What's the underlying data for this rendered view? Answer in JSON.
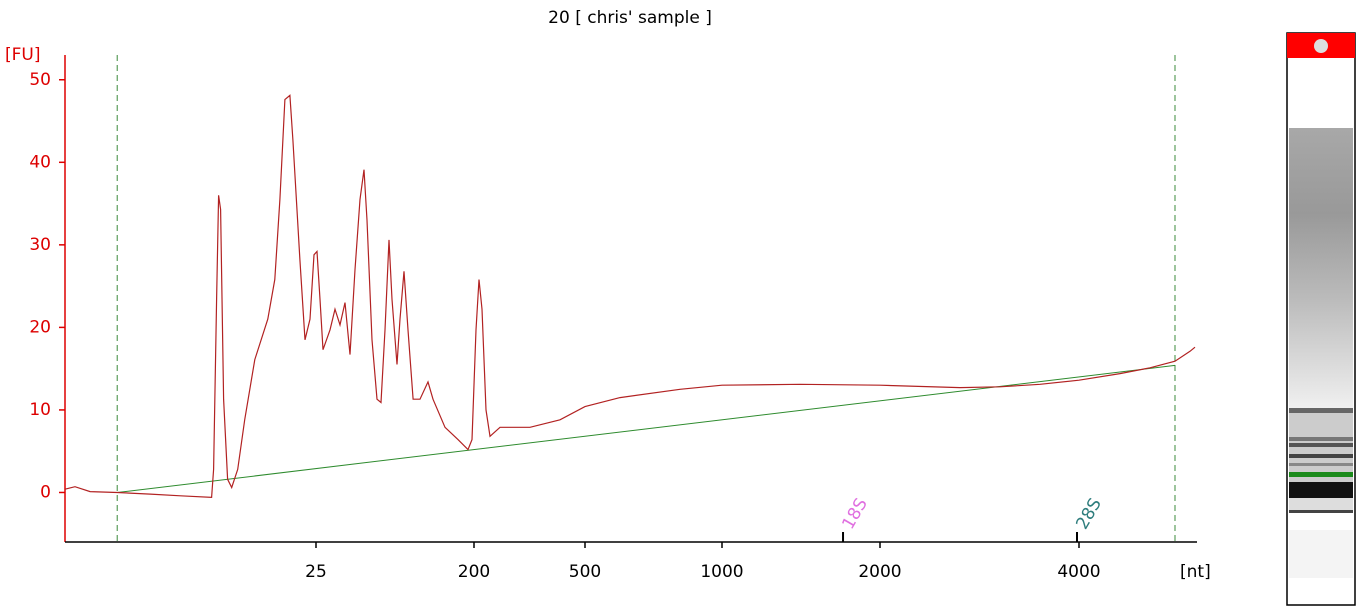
{
  "chart_data": {
    "type": "line",
    "title": "20  [ chris' sample ]",
    "y_label": "[FU]",
    "x_label": "[nt]",
    "series": [
      {
        "color": "#b22222",
        "x": [
          0,
          1.0,
          2.5,
          5.2,
          8.5,
          11.5,
          14.6,
          14.8,
          15.1,
          15.3,
          15.5,
          15.8,
          16.2,
          16.6,
          17.2,
          17.9,
          18.9,
          20.2,
          20.9,
          21.4,
          21.9,
          22.4,
          22.7,
          23.4,
          23.9,
          24.4,
          24.8,
          26.1,
          29.4,
          32.8,
          40.5,
          46,
          51.6,
          57.1,
          62.7,
          68.2,
          73.7,
          78.2,
          81.5,
          87,
          92.6,
          97,
          101.4,
          105.9,
          109.2,
          114.7,
          118,
          122.5,
          126.9,
          132.5,
          140.2,
          149.1,
          154.6,
          167.9,
          182.3,
          193.4,
          197.8,
          205.4,
          213.5,
          221.6,
          232.4,
          243.2,
          270.3,
          351.4,
          432.4,
          500,
          627.8,
          846.8,
          1000,
          1493.7,
          2000,
          2804,
          3206,
          3608,
          4000,
          4695,
          5203,
          5627,
          5881,
          5966
        ],
        "values": [
          0.4,
          0.7,
          0.1,
          0,
          -0.2,
          -0.4,
          -0.6,
          2.8,
          23.4,
          36,
          34.3,
          11.3,
          1.6,
          0.6,
          2.8,
          8.8,
          16.1,
          21,
          25.8,
          35.5,
          47.6,
          48.1,
          42.7,
          28.2,
          18.5,
          21,
          28.8,
          29.2,
          23.4,
          17.3,
          19.7,
          22.2,
          20.3,
          23,
          16.7,
          27,
          35.5,
          39.1,
          33,
          18.5,
          11.3,
          10.9,
          19.7,
          30.6,
          23.4,
          15.5,
          21,
          26.8,
          19.7,
          11.3,
          11.3,
          13.4,
          11.3,
          7.9,
          6.4,
          5.2,
          6.4,
          19.7,
          25.8,
          22.2,
          10,
          6.8,
          7.9,
          7.9,
          8.8,
          10.4,
          11.5,
          12.5,
          13,
          13.1,
          13,
          12.7,
          12.8,
          13.1,
          13.6,
          14.4,
          15.1,
          15.9,
          17.1,
          17.6
        ]
      }
    ],
    "baseline": {
      "color": "#2e8b2e",
      "x": [
        5.2,
        5627
      ],
      "values": [
        0,
        15.4
      ]
    },
    "vlines": {
      "color": "#3a8a3a",
      "x": [
        5.2,
        5627
      ]
    },
    "annotations": [
      {
        "text": "18S",
        "x": 1766,
        "color": "#e070e0"
      },
      {
        "text": "28S",
        "x": 3980,
        "color": "#2e7d7d"
      }
    ],
    "xlim": [
      0,
      6000
    ],
    "xticks": [
      25,
      200,
      500,
      1000,
      2000,
      4000
    ],
    "ylim": [
      -6,
      53
    ],
    "yticks": [
      0,
      10,
      20,
      30,
      40,
      50
    ],
    "y_axis_color": "#dd0000"
  }
}
